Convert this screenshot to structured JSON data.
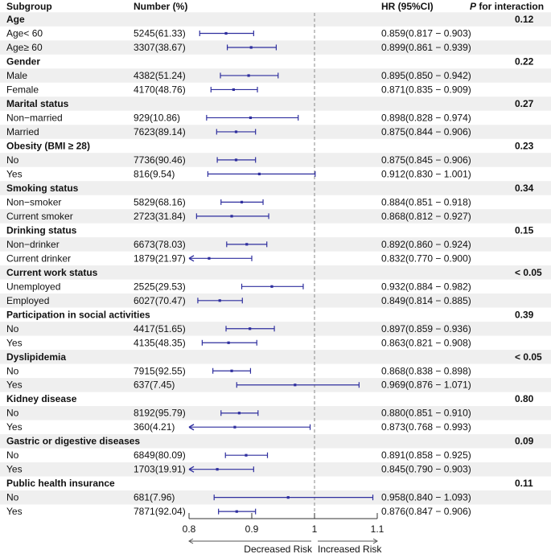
{
  "header": {
    "subgroup": "Subgroup",
    "number": "Number (%)",
    "hr": "HR (95%CI)",
    "p_italic": "P",
    "p_rest": " for interaction"
  },
  "colors": {
    "ci": "#2e2e9e",
    "shade": "#efefef",
    "ref_line": "#888888"
  },
  "chart_data": {
    "type": "forest",
    "xlim": [
      0.8,
      1.1
    ],
    "ticks": [
      "0.8",
      "0.9",
      "1",
      "1.1"
    ],
    "reference": 1,
    "left_label": "Decreased Risk",
    "right_label": "Increased Risk",
    "groups": [
      {
        "name": "Age",
        "p": "0.12",
        "rows": [
          {
            "label": "Age< 60",
            "n": "5245(61.33)",
            "hr": 0.859,
            "lo": 0.817,
            "hi": 0.903,
            "text": "0.859(0.817 − 0.903)"
          },
          {
            "label": "Age≥ 60",
            "n": "3307(38.67)",
            "hr": 0.899,
            "lo": 0.861,
            "hi": 0.939,
            "text": "0.899(0.861 − 0.939)"
          }
        ]
      },
      {
        "name": "Gender",
        "p": "0.22",
        "rows": [
          {
            "label": "Male",
            "n": "4382(51.24)",
            "hr": 0.895,
            "lo": 0.85,
            "hi": 0.942,
            "text": "0.895(0.850 − 0.942)"
          },
          {
            "label": "Female",
            "n": "4170(48.76)",
            "hr": 0.871,
            "lo": 0.835,
            "hi": 0.909,
            "text": "0.871(0.835 − 0.909)"
          }
        ]
      },
      {
        "name": "Marital status",
        "p": "0.27",
        "rows": [
          {
            "label": "Non−married",
            "n": "929(10.86)",
            "hr": 0.898,
            "lo": 0.828,
            "hi": 0.974,
            "text": "0.898(0.828 − 0.974)"
          },
          {
            "label": "Married",
            "n": "7623(89.14)",
            "hr": 0.875,
            "lo": 0.844,
            "hi": 0.906,
            "text": "0.875(0.844 − 0.906)"
          }
        ]
      },
      {
        "name": "Obesity (BMI ≥ 28)",
        "p": "0.23",
        "rows": [
          {
            "label": "No",
            "n": "7736(90.46)",
            "hr": 0.875,
            "lo": 0.845,
            "hi": 0.906,
            "text": "0.875(0.845 − 0.906)"
          },
          {
            "label": "Yes",
            "n": "816(9.54)",
            "hr": 0.912,
            "lo": 0.83,
            "hi": 1.001,
            "text": "0.912(0.830 − 1.001)"
          }
        ]
      },
      {
        "name": "Smoking status",
        "p": "0.34",
        "rows": [
          {
            "label": "Non−smoker",
            "n": "5829(68.16)",
            "hr": 0.884,
            "lo": 0.851,
            "hi": 0.918,
            "text": "0.884(0.851 − 0.918)"
          },
          {
            "label": "Current smoker",
            "n": "2723(31.84)",
            "hr": 0.868,
            "lo": 0.812,
            "hi": 0.927,
            "text": "0.868(0.812 − 0.927)"
          }
        ]
      },
      {
        "name": "Drinking status",
        "p": "0.15",
        "rows": [
          {
            "label": "Non−drinker",
            "n": "6673(78.03)",
            "hr": 0.892,
            "lo": 0.86,
            "hi": 0.924,
            "text": "0.892(0.860 − 0.924)"
          },
          {
            "label": "Current drinker",
            "n": "1879(21.97)",
            "hr": 0.832,
            "lo": 0.77,
            "hi": 0.9,
            "text": "0.832(0.770 − 0.900)"
          }
        ]
      },
      {
        "name": "Current work status",
        "p": "< 0.05",
        "rows": [
          {
            "label": "Unemployed",
            "n": "2525(29.53)",
            "hr": 0.932,
            "lo": 0.884,
            "hi": 0.982,
            "text": "0.932(0.884 − 0.982)"
          },
          {
            "label": "Employed",
            "n": "6027(70.47)",
            "hr": 0.849,
            "lo": 0.814,
            "hi": 0.885,
            "text": "0.849(0.814 − 0.885)"
          }
        ]
      },
      {
        "name": "Participation in social activities",
        "p": "0.39",
        "rows": [
          {
            "label": "No",
            "n": "4417(51.65)",
            "hr": 0.897,
            "lo": 0.859,
            "hi": 0.936,
            "text": "0.897(0.859 − 0.936)"
          },
          {
            "label": "Yes",
            "n": "4135(48.35)",
            "hr": 0.863,
            "lo": 0.821,
            "hi": 0.908,
            "text": "0.863(0.821 − 0.908)"
          }
        ]
      },
      {
        "name": "Dyslipidemia",
        "p": "< 0.05",
        "rows": [
          {
            "label": "No",
            "n": "7915(92.55)",
            "hr": 0.868,
            "lo": 0.838,
            "hi": 0.898,
            "text": "0.868(0.838 − 0.898)"
          },
          {
            "label": "Yes",
            "n": "637(7.45)",
            "hr": 0.969,
            "lo": 0.876,
            "hi": 1.071,
            "text": "0.969(0.876 − 1.071)"
          }
        ]
      },
      {
        "name": "Kidney disease",
        "p": "0.80",
        "rows": [
          {
            "label": "No",
            "n": "8192(95.79)",
            "hr": 0.88,
            "lo": 0.851,
            "hi": 0.91,
            "text": "0.880(0.851 − 0.910)"
          },
          {
            "label": "Yes",
            "n": "360(4.21)",
            "hr": 0.873,
            "lo": 0.768,
            "hi": 0.993,
            "text": "0.873(0.768 − 0.993)"
          }
        ]
      },
      {
        "name": "Gastric or digestive diseases",
        "p": "0.09",
        "rows": [
          {
            "label": "No",
            "n": "6849(80.09)",
            "hr": 0.891,
            "lo": 0.858,
            "hi": 0.925,
            "text": "0.891(0.858 − 0.925)"
          },
          {
            "label": "Yes",
            "n": "1703(19.91)",
            "hr": 0.845,
            "lo": 0.79,
            "hi": 0.903,
            "text": "0.845(0.790 − 0.903)"
          }
        ]
      },
      {
        "name": "Public health insurance",
        "p": "0.11",
        "rows": [
          {
            "label": "No",
            "n": "681(7.96)",
            "hr": 0.958,
            "lo": 0.84,
            "hi": 1.093,
            "text": "0.958(0.840 − 1.093)"
          },
          {
            "label": "Yes",
            "n": "7871(92.04)",
            "hr": 0.876,
            "lo": 0.847,
            "hi": 0.906,
            "text": "0.876(0.847 − 0.906)"
          }
        ]
      }
    ]
  }
}
